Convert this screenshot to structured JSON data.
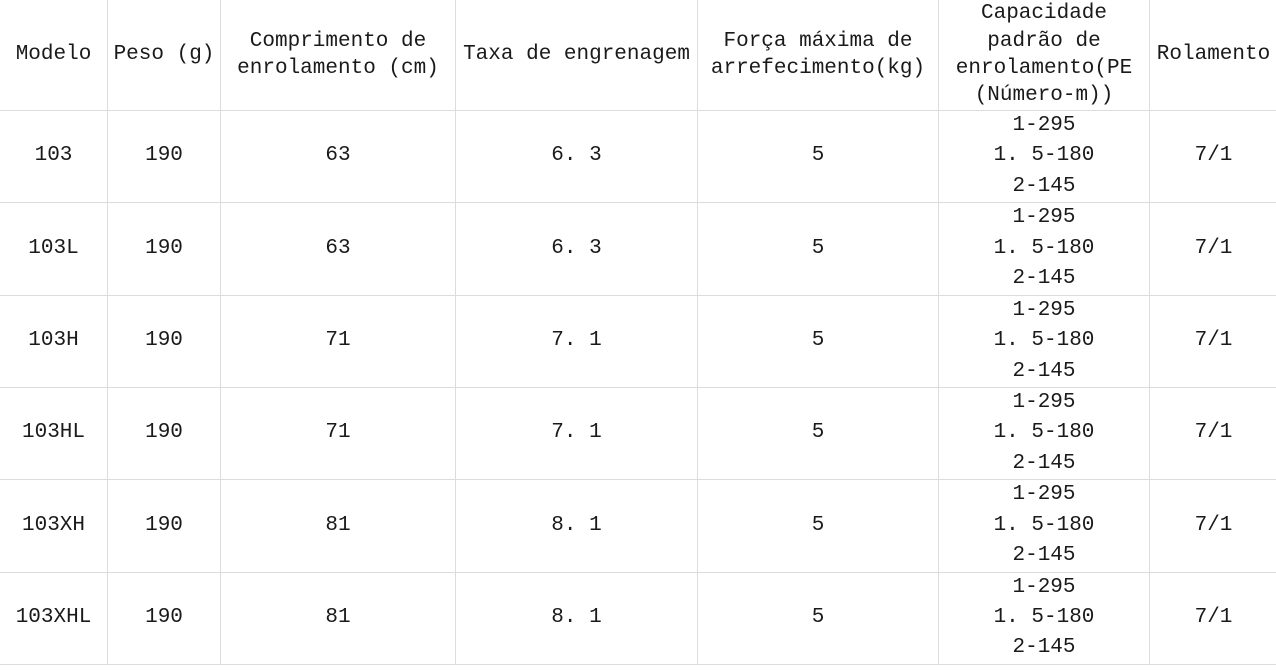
{
  "page": {
    "background_color": "#ffffff",
    "text_color": "#1a1a1a",
    "border_color": "#dcdcdc"
  },
  "table": {
    "columns": [
      {
        "id": "modelo",
        "label": "Modelo"
      },
      {
        "id": "peso",
        "label": "Peso (g)"
      },
      {
        "id": "comprimento",
        "label": "Comprimento de\nenrolamento (cm)"
      },
      {
        "id": "taxa",
        "label": "Taxa de engrenagem"
      },
      {
        "id": "forca",
        "label": "Força máxima de\narrefecimento(kg)"
      },
      {
        "id": "capacidade",
        "label": "Capacidade\npadrão de\nenrolamento(PE\n(Número-m))"
      },
      {
        "id": "rolamento",
        "label": "Rolamento"
      }
    ],
    "rows": [
      {
        "cells": [
          "103",
          "190",
          "63",
          "6. 3",
          "5",
          "1-295\n1. 5-180\n2-145",
          "7/1"
        ]
      },
      {
        "cells": [
          "103L",
          "190",
          "63",
          "6. 3",
          "5",
          "1-295\n1. 5-180\n2-145",
          "7/1"
        ]
      },
      {
        "cells": [
          "103H",
          "190",
          "71",
          "7. 1",
          "5",
          "1-295\n1. 5-180\n2-145",
          "7/1"
        ]
      },
      {
        "cells": [
          "103HL",
          "190",
          "71",
          "7. 1",
          "5",
          "1-295\n1. 5-180\n2-145",
          "7/1"
        ]
      },
      {
        "cells": [
          "103XH",
          "190",
          "81",
          "8. 1",
          "5",
          "1-295\n1. 5-180\n2-145",
          "7/1"
        ]
      },
      {
        "cells": [
          "103XHL",
          "190",
          "81",
          "8. 1",
          "5",
          "1-295\n1. 5-180\n2-145",
          "7/1"
        ]
      }
    ]
  }
}
